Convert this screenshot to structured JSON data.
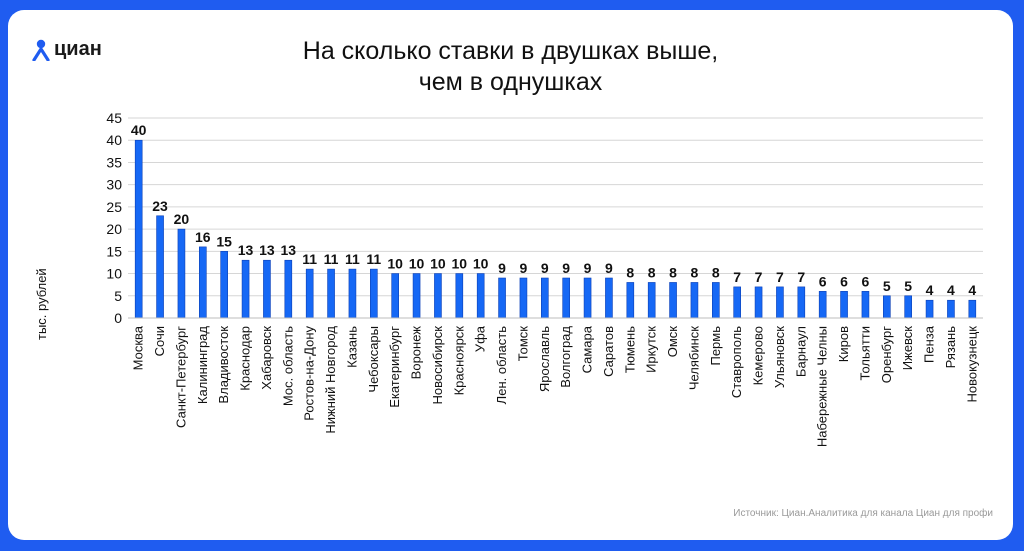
{
  "brand": {
    "name": "циан"
  },
  "source": "Источник: Циан.Аналитика для канала Циан для профи",
  "colors": {
    "bar": "#1668f5",
    "background": "#1f5cf0",
    "grid": "#d6d6d6"
  },
  "chart_data": {
    "type": "bar",
    "title": [
      "На сколько ставки в двушках выше,",
      "чем в однушках"
    ],
    "ylabel": "тыс. рублей",
    "xlabel": "",
    "ylim": [
      0,
      45
    ],
    "yticks": [
      0,
      5,
      10,
      15,
      20,
      25,
      30,
      35,
      40,
      45
    ],
    "grid": true,
    "categories": [
      "Москва",
      "Сочи",
      "Санкт-Петербург",
      "Калининград",
      "Владивосток",
      "Краснодар",
      "Хабаровск",
      "Мос. область",
      "Ростов-на-Дону",
      "Нижний Новгород",
      "Казань",
      "Чебоксары",
      "Екатеринбург",
      "Воронеж",
      "Новосибирск",
      "Красноярск",
      "Уфа",
      "Лен. область",
      "Томск",
      "Ярославль",
      "Волгоград",
      "Самара",
      "Саратов",
      "Тюмень",
      "Иркутск",
      "Омск",
      "Челябинск",
      "Пермь",
      "Ставрополь",
      "Кемерово",
      "Ульяновск",
      "Барнаул",
      "Набережные Челны",
      "Киров",
      "Тольятти",
      "Оренбург",
      "Ижевск",
      "Пенза",
      "Рязань",
      "Новокузнецк"
    ],
    "values": [
      40,
      23,
      20,
      16,
      15,
      13,
      13,
      13,
      11,
      11,
      11,
      11,
      10,
      10,
      10,
      10,
      10,
      9,
      9,
      9,
      9,
      9,
      9,
      8,
      8,
      8,
      8,
      8,
      7,
      7,
      7,
      7,
      6,
      6,
      6,
      5,
      5,
      4,
      4,
      4
    ]
  }
}
